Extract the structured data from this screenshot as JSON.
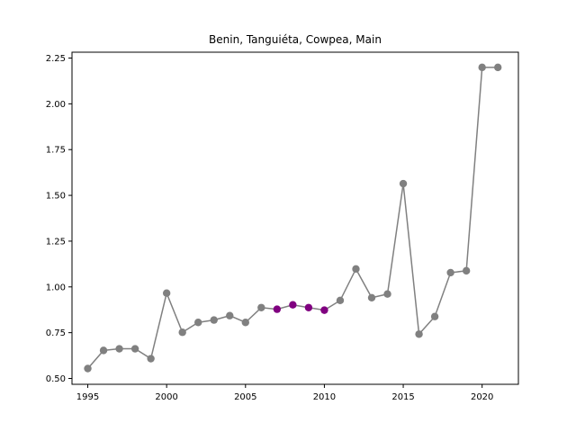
{
  "chart_data": {
    "type": "line",
    "title": "Benin, Tanguiéta, Cowpea, Main",
    "xlabel": "",
    "ylabel": "",
    "xlim": [
      1994.0,
      2022.3
    ],
    "ylim": [
      0.468,
      2.282
    ],
    "xticks": [
      1995,
      2000,
      2005,
      2010,
      2015,
      2020
    ],
    "yticks": [
      0.5,
      0.75,
      1.0,
      1.25,
      1.5,
      1.75,
      2.0,
      2.25
    ],
    "grid": false,
    "x": [
      1995,
      1996,
      1997,
      1998,
      1999,
      2000,
      2001,
      2002,
      2003,
      2004,
      2005,
      2006,
      2007,
      2008,
      2009,
      2010,
      2011,
      2012,
      2013,
      2014,
      2015,
      2016,
      2017,
      2018,
      2019,
      2020,
      2021
    ],
    "y": [
      0.554,
      0.653,
      0.662,
      0.662,
      0.608,
      0.966,
      0.752,
      0.806,
      0.819,
      0.843,
      0.806,
      0.887,
      0.878,
      0.902,
      0.887,
      0.873,
      0.926,
      1.098,
      0.941,
      0.961,
      1.564,
      0.742,
      0.838,
      1.078,
      1.088,
      2.199,
      2.199
    ],
    "highlight_x": [
      2007,
      2008,
      2009,
      2010
    ],
    "colors": {
      "line": "#808080",
      "marker": "#808080",
      "highlight": "#800080"
    }
  }
}
